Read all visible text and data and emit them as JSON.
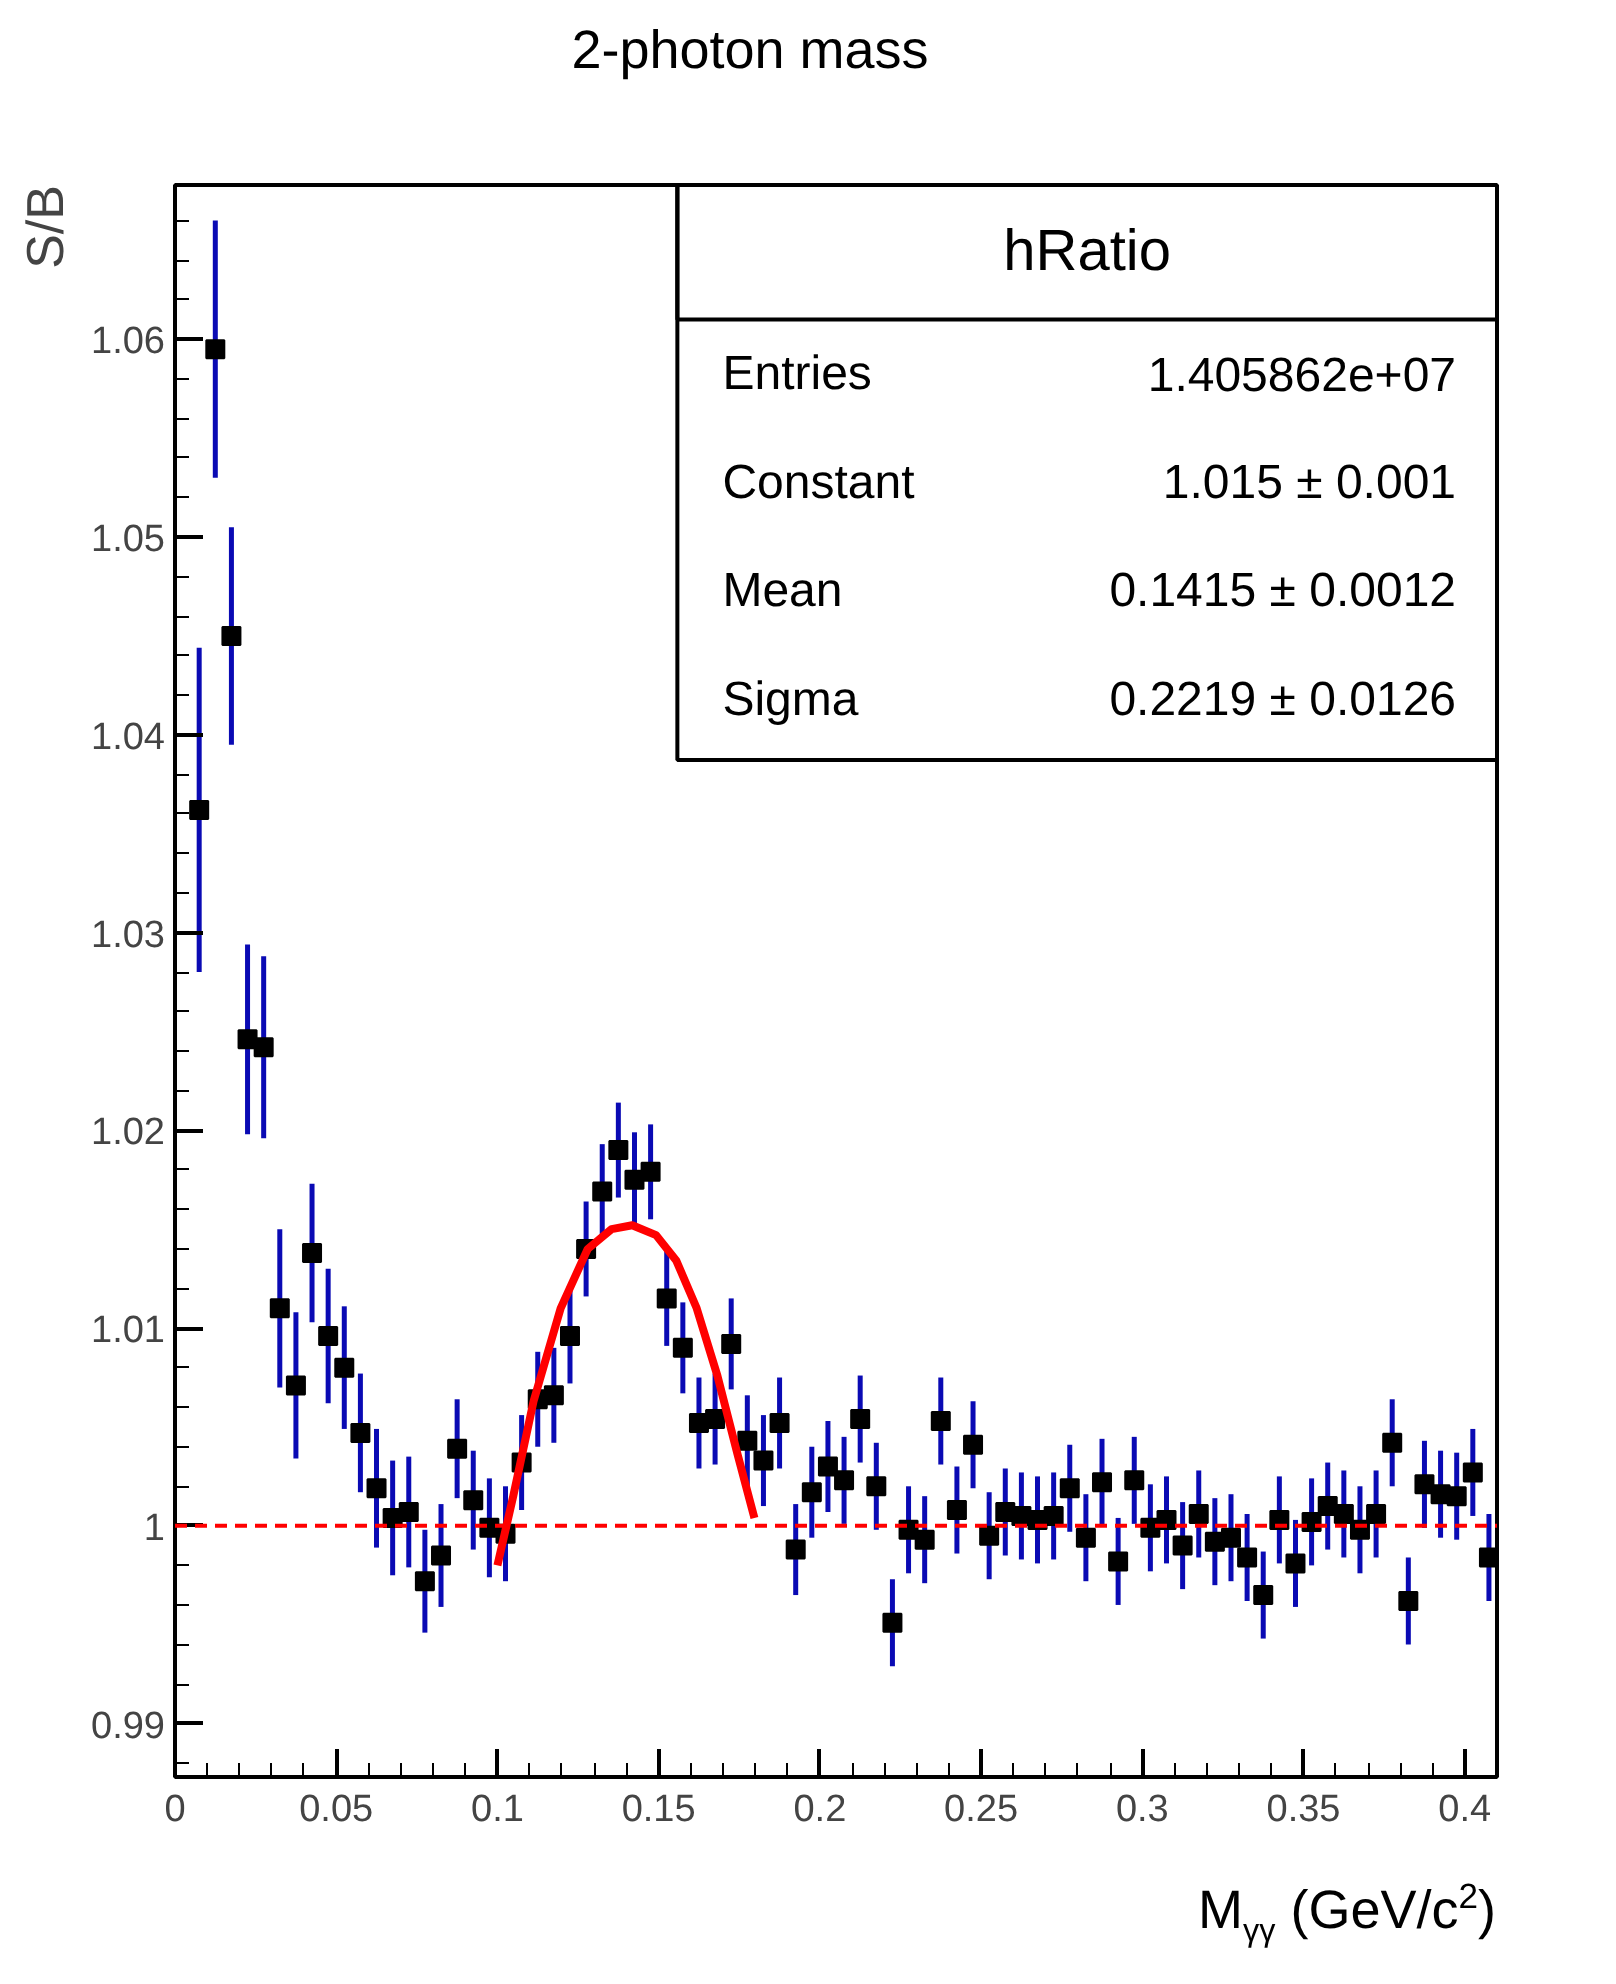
{
  "chart_data": {
    "type": "scatter",
    "title": "2-photon mass",
    "xlabel": "M$_{γγ}$ (GeV/c$^{2}$)",
    "ylabel": "S/B",
    "annotations": [
      "hRatio",
      "Entries",
      "1.405862e+07",
      "Constant",
      "1.015 ± 0.001",
      "Mean",
      "0.1415 ± 0.0012",
      "Sigma",
      "0.2219 ± 0.0126"
    ],
    "xlim": [
      0,
      0.41
    ],
    "ylim": [
      0.9873,
      1.0678
    ],
    "xticks": [
      0,
      0.05,
      0.1,
      0.15,
      0.2,
      0.25,
      0.3,
      0.35,
      0.4
    ],
    "yticks": [
      0.99,
      1,
      1.01,
      1.02,
      1.03,
      1.04,
      1.05,
      1.06
    ],
    "grid": false,
    "marker": "square",
    "ref_lines": [
      {
        "axis": "y",
        "value": 1,
        "color": "#ff0000",
        "line_style": "dashed"
      }
    ],
    "series": [
      {
        "color": "#000000",
        "x": [
          0.0075,
          0.0125,
          0.0175,
          0.0225,
          0.0275,
          0.0325,
          0.0375,
          0.0425,
          0.0475,
          0.0525,
          0.0575,
          0.0625,
          0.0675,
          0.0725,
          0.0775,
          0.0825,
          0.0875,
          0.0925,
          0.0975,
          0.1025,
          0.1075,
          0.1125,
          0.1175,
          0.1225,
          0.1275,
          0.1325,
          0.1375,
          0.1425,
          0.1475,
          0.1525,
          0.1575,
          0.1625,
          0.1675,
          0.1725,
          0.1775,
          0.1825,
          0.1875,
          0.1925,
          0.1975,
          0.2025,
          0.2075,
          0.2125,
          0.2175,
          0.2225,
          0.2275,
          0.2325,
          0.2375,
          0.2425,
          0.2475,
          0.2525,
          0.2575,
          0.2625,
          0.2675,
          0.2725,
          0.2775,
          0.2825,
          0.2875,
          0.2925,
          0.2975,
          0.3025,
          0.3075,
          0.3125,
          0.3175,
          0.3225,
          0.3275,
          0.3325,
          0.3375,
          0.3425,
          0.3475,
          0.3525,
          0.3575,
          0.3625,
          0.3675,
          0.3725,
          0.3775,
          0.3825,
          0.3875,
          0.3925,
          0.3975,
          0.4025,
          0.4075
        ],
        "values": [
          1.0362,
          1.0595,
          1.045,
          1.0246,
          1.0242,
          1.011,
          1.0071,
          1.0138,
          1.0096,
          1.008,
          1.0047,
          1.0019,
          1.0004,
          1.0007,
          0.9972,
          0.9985,
          1.0039,
          1.0013,
          0.9999,
          0.9996,
          1.0032,
          1.0064,
          1.0066,
          1.0096,
          1.014,
          1.0169,
          1.019,
          1.0175,
          1.0179,
          1.0115,
          1.009,
          1.0052,
          1.0054,
          1.0092,
          1.0043,
          1.0033,
          1.0052,
          0.9988,
          1.0017,
          1.003,
          1.0023,
          1.0054,
          1.002,
          0.9951,
          0.9998,
          0.9993,
          1.0053,
          1.0008,
          1.0041,
          0.9995,
          1.0007,
          1.0005,
          1.0003,
          1.0005,
          1.0019,
          0.9994,
          1.0022,
          0.9982,
          1.0023,
          0.9999,
          1.0003,
          0.999,
          1.0006,
          0.9992,
          0.9994,
          0.9984,
          0.9965,
          1.0003,
          0.9981,
          1.0002,
          1.001,
          1.0006,
          0.9998,
          1.0006,
          1.0042,
          0.9962,
          1.0021,
          1.0016,
          1.0015,
          1.0027,
          0.9984
        ],
        "errors": [
          0.0082,
          0.0065,
          0.0055,
          0.0048,
          0.0046,
          0.004,
          0.0037,
          0.0035,
          0.0034,
          0.0031,
          0.003,
          0.003,
          0.0029,
          0.0028,
          0.0026,
          0.0026,
          0.0025,
          0.0025,
          0.0025,
          0.0024,
          0.0024,
          0.0024,
          0.0024,
          0.0024,
          0.0024,
          0.0024,
          0.0024,
          0.0024,
          0.0024,
          0.0024,
          0.0023,
          0.0023,
          0.0023,
          0.0023,
          0.0023,
          0.0023,
          0.0023,
          0.0023,
          0.0023,
          0.0023,
          0.0022,
          0.0022,
          0.0022,
          0.0022,
          0.0022,
          0.0022,
          0.0022,
          0.0022,
          0.0022,
          0.0022,
          0.0022,
          0.0022,
          0.0022,
          0.0022,
          0.0022,
          0.0022,
          0.0022,
          0.0022,
          0.0022,
          0.0022,
          0.0022,
          0.0022,
          0.0022,
          0.0022,
          0.0022,
          0.0022,
          0.0022,
          0.0022,
          0.0022,
          0.0022,
          0.0022,
          0.0022,
          0.0022,
          0.0022,
          0.0022,
          0.0022,
          0.0022,
          0.0022,
          0.0022,
          0.0022,
          0.0022
        ]
      },
      {
        "type": "line",
        "color": "#ff0000",
        "marker": "none",
        "line_style": "solid",
        "x": [
          0.1,
          0.1049,
          0.1112,
          0.1196,
          0.128,
          0.1354,
          0.1418,
          0.1492,
          0.1555,
          0.1618,
          0.1682,
          0.1745,
          0.1797
        ],
        "values": [
          0.998,
          1.0015,
          1.0063,
          1.011,
          1.014,
          1.015,
          1.0152,
          1.0147,
          1.0134,
          1.011,
          1.0076,
          1.0036,
          1.0004
        ]
      }
    ]
  }
}
